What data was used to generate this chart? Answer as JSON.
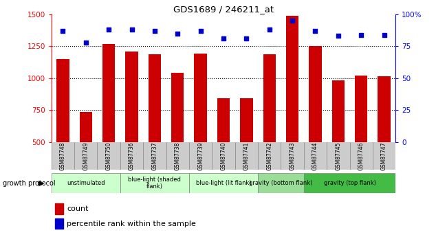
{
  "title": "GDS1689 / 246211_at",
  "samples": [
    "GSM87748",
    "GSM87749",
    "GSM87750",
    "GSM87736",
    "GSM87737",
    "GSM87738",
    "GSM87739",
    "GSM87740",
    "GSM87741",
    "GSM87742",
    "GSM87743",
    "GSM87744",
    "GSM87745",
    "GSM87746",
    "GSM87747"
  ],
  "counts": [
    1150,
    735,
    1265,
    1210,
    1185,
    1040,
    1195,
    845,
    845,
    1185,
    1490,
    1250,
    985,
    1020,
    1015
  ],
  "percentile_ranks": [
    87,
    78,
    88,
    88,
    87,
    85,
    87,
    81,
    81,
    88,
    95,
    87,
    83,
    84,
    84
  ],
  "ylim_left": [
    500,
    1500
  ],
  "ylim_right": [
    0,
    100
  ],
  "yticks_left": [
    500,
    750,
    1000,
    1250,
    1500
  ],
  "yticks_right": [
    0,
    25,
    50,
    75,
    100
  ],
  "bar_color": "#cc0000",
  "dot_color": "#0000cc",
  "bg_color": "#ffffff",
  "groups": [
    {
      "label": "unstimulated",
      "start": 0,
      "end": 3,
      "color": "#ccffcc"
    },
    {
      "label": "blue-light (shaded\nflank)",
      "start": 3,
      "end": 6,
      "color": "#ccffcc"
    },
    {
      "label": "blue-light (lit flank)",
      "start": 6,
      "end": 9,
      "color": "#ccffcc"
    },
    {
      "label": "gravity (bottom flank)",
      "start": 9,
      "end": 11,
      "color": "#99dd99"
    },
    {
      "label": "gravity (top flank)",
      "start": 11,
      "end": 15,
      "color": "#44bb44"
    }
  ],
  "xlabel_area": "growth protocol",
  "legend_count_label": "count",
  "legend_pct_label": "percentile rank within the sample",
  "grid_yticks": [
    750,
    1000,
    1250
  ]
}
